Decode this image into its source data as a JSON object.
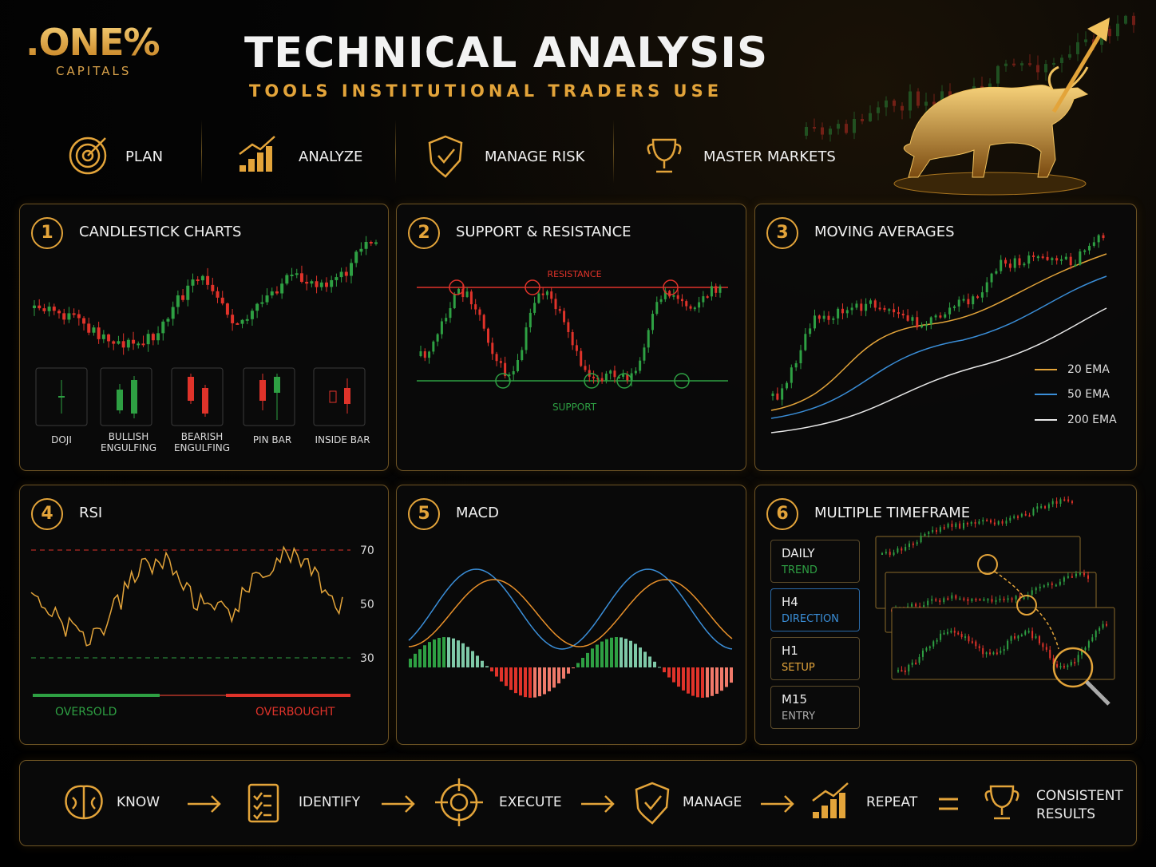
{
  "header": {
    "logo": ".ONE%",
    "logo_sub": "CAPITALS",
    "title": "TECHNICAL ANALYSIS",
    "subtitle": "TOOLS INSTITUTIONAL TRADERS USE"
  },
  "pillars": [
    "PLAN",
    "ANALYZE",
    "MANAGE RISK",
    "MASTER MARKETS"
  ],
  "panels": [
    {
      "number": 1,
      "title": "CANDLESTICK CHARTS",
      "patterns": [
        "DOJI",
        "BULLISH ENGULFING",
        "BEARISH ENGULFING",
        "PIN BAR",
        "INSIDE BAR"
      ]
    },
    {
      "number": 2,
      "title": "SUPPORT & RESISTANCE",
      "resistance_label": "RESISTANCE",
      "support_label": "SUPPORT"
    },
    {
      "number": 3,
      "title": "MOVING AVERAGES",
      "legend": [
        "20 EMA",
        "50 EMA",
        "200 EMA"
      ]
    },
    {
      "number": 4,
      "title": "RSI",
      "ticks": [
        70,
        50,
        30
      ],
      "oversold_label": "OVERSOLD",
      "overbought_label": "OVERBOUGHT"
    },
    {
      "number": 5,
      "title": "MACD"
    },
    {
      "number": 6,
      "title": "MULTIPLE TIMEFRAME",
      "timeframes": [
        {
          "name": "DAILY",
          "role": "TREND"
        },
        {
          "name": "H4",
          "role": "DIRECTION"
        },
        {
          "name": "H1",
          "role": "SETUP"
        },
        {
          "name": "M15",
          "role": "ENTRY"
        }
      ]
    }
  ],
  "process": [
    "KNOW",
    "IDENTIFY",
    "EXECUTE",
    "MANAGE",
    "REPEAT"
  ],
  "result": "CONSISTENT RESULTS"
}
